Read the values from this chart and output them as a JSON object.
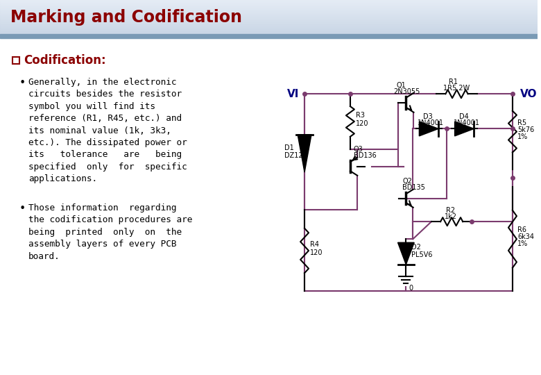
{
  "title": "Marking and Codification",
  "title_color": "#8B0000",
  "section_header": "Codification:",
  "section_header_color": "#8B0000",
  "bullet1_lines": [
    "Generally, in the electronic",
    "circuits besides the resistor",
    "symbol you will find its",
    "reference (R1, R45, etc.) and",
    "its nominal value (1k, 3k3,",
    "etc.). The dissipated power or",
    "its   tolerance   are   being",
    "specified  only  for  specific",
    "applications."
  ],
  "bullet2_lines": [
    "Those information  regarding",
    "the codification procedures are",
    "being  printed  only  on  the",
    "assembly layers of every PCB",
    "board."
  ],
  "wire_color": "#7B3B6E",
  "title_fontsize": 17,
  "section_fontsize": 12,
  "body_fontsize": 9.2
}
